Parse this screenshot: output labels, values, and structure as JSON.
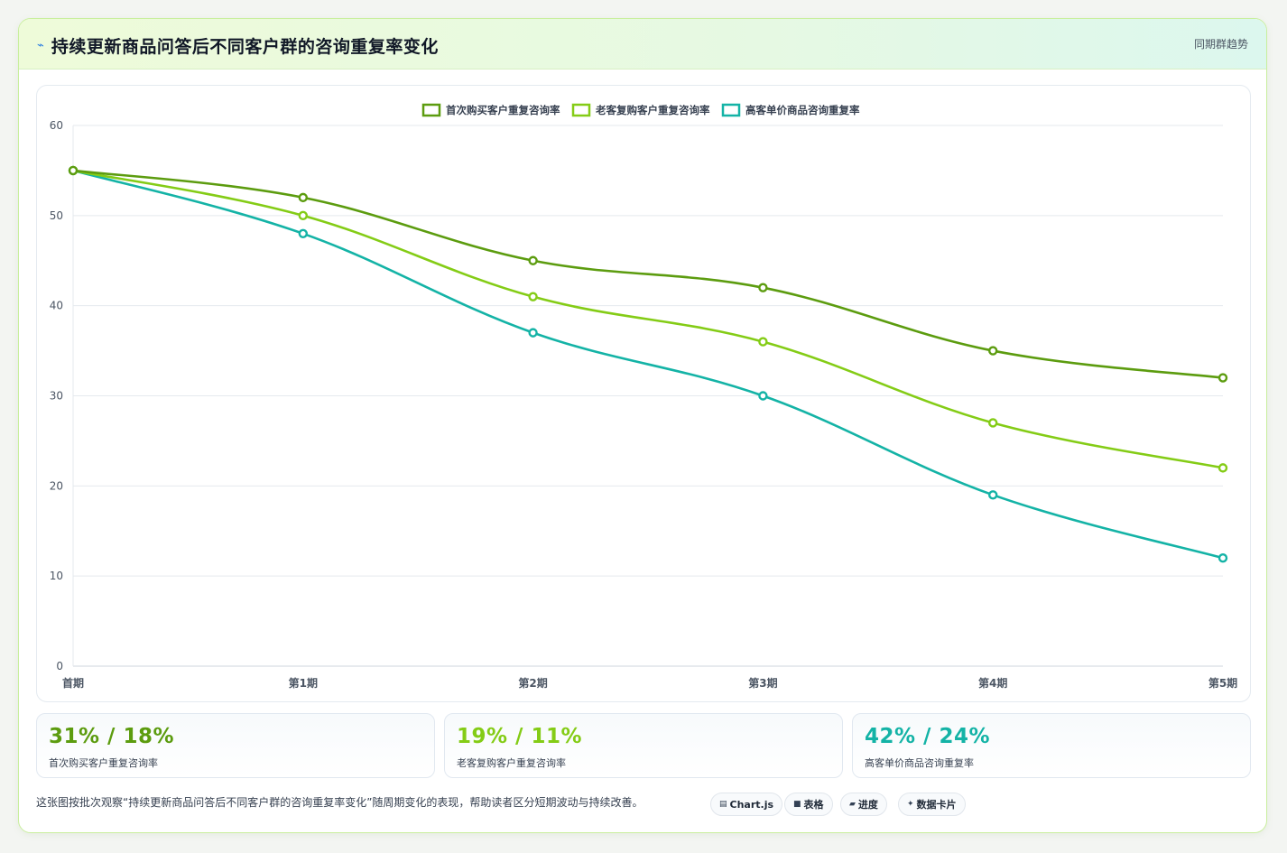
{
  "header": {
    "title": "持续更新商品问答后不同客户群的咨询重复率变化",
    "subtitle": "同期群趋势",
    "title_icon": "lightning-icon"
  },
  "colors": {
    "series1": "#5c9c0f",
    "series2": "#84cc16",
    "series3": "#14b3a6"
  },
  "chart_data": {
    "type": "line",
    "categories": [
      "首期",
      "第1期",
      "第2期",
      "第3期",
      "第4期",
      "第5期"
    ],
    "ylim": [
      0,
      60
    ],
    "yticks": [
      0,
      10,
      20,
      30,
      40,
      50,
      60
    ],
    "grid": true,
    "legend": "top-center",
    "series": [
      {
        "name": "首次购买客户重复咨询率",
        "values": [
          55,
          52,
          45,
          42,
          35,
          32
        ],
        "color": "#5c9c0f"
      },
      {
        "name": "老客复购客户重复咨询率",
        "values": [
          55,
          50,
          41,
          36,
          27,
          22
        ],
        "color": "#84cc16"
      },
      {
        "name": "高客单价商品咨询重复率",
        "values": [
          55,
          48,
          37,
          30,
          19,
          12
        ],
        "color": "#14b3a6"
      }
    ]
  },
  "stats": [
    {
      "value": "31% / 18%",
      "label": "首次购买客户重复咨询率",
      "color": "#5c9c0f"
    },
    {
      "value": "19% / 11%",
      "label": "老客复购客户重复咨询率",
      "color": "#84cc16"
    },
    {
      "value": "42% / 24%",
      "label": "高客单价商品咨询重复率",
      "color": "#14b3a6"
    }
  ],
  "footer": {
    "note": "这张图按批次观察“持续更新商品问答后不同客户群的咨询重复率变化”随周期变化的表现，帮助读者区分短期波动与持续改善。",
    "chips": [
      {
        "label": "Chart.js",
        "icon": "chart-icon",
        "glyph": "▤"
      },
      {
        "label": "表格",
        "icon": "table-icon",
        "glyph": "■"
      },
      {
        "label": "进度",
        "icon": "progress-icon",
        "glyph": "▰"
      },
      {
        "label": "数据卡片",
        "icon": "sparkle-icon",
        "glyph": "✦"
      }
    ]
  }
}
